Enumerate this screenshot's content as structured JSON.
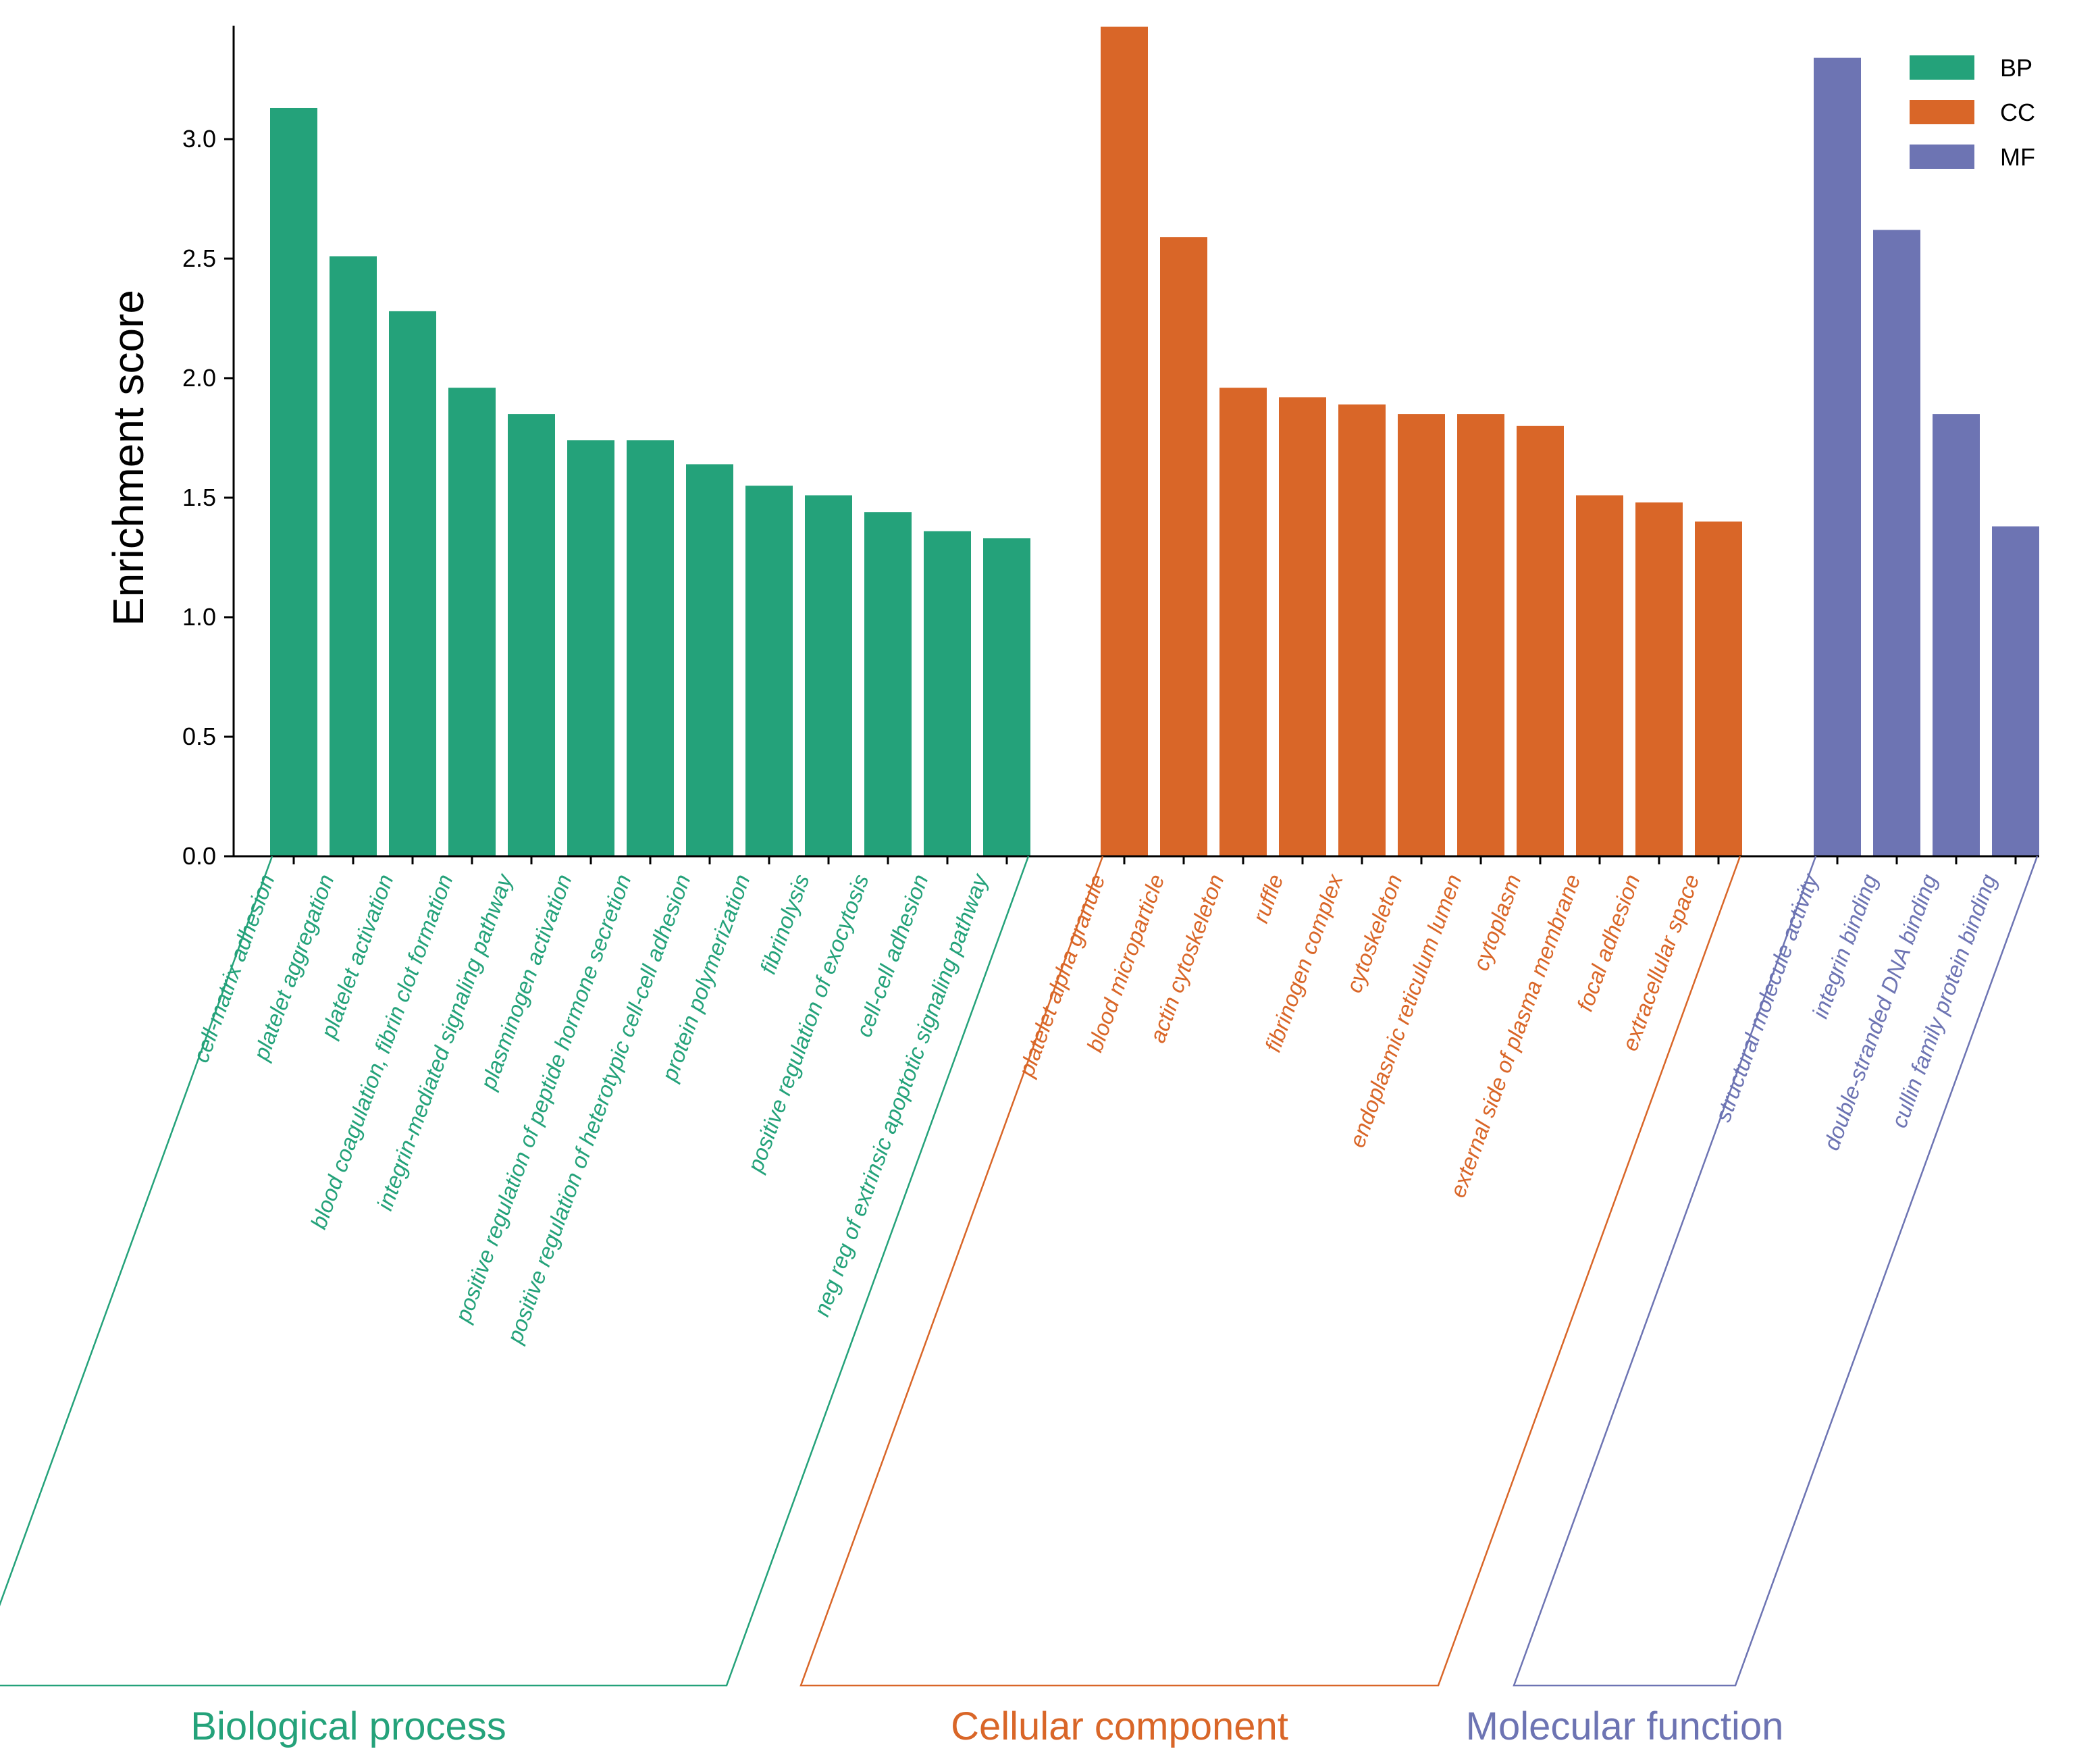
{
  "chart_data": {
    "type": "bar",
    "ylabel": "Enrichment score",
    "xlabel": "",
    "ylim": [
      0,
      3.5
    ],
    "yticks": [
      0.0,
      0.5,
      1.0,
      1.5,
      2.0,
      2.5,
      3.0
    ],
    "legend_position": "top-right",
    "groups": [
      {
        "key": "BP",
        "name": "Biological process",
        "color": "#24a27a",
        "categories": [
          "cell-matrix adhesion",
          "platelet aggregation",
          "platelet activation",
          "blood coagulation, fibrin clot formation",
          "integrin-mediated signaling pathway",
          "plasminogen activation",
          "positive regulation of peptide hormone secretion",
          "positive regulation of heterotypic cell-cell adhesion",
          "protein polymerization",
          "fibrinolysis",
          "positive regulation of exocytosis",
          "cell-cell adhesion",
          "neg reg of extrinsic apoptotic signaling pathway"
        ],
        "values": [
          3.13,
          2.51,
          2.28,
          1.96,
          1.85,
          1.74,
          1.74,
          1.64,
          1.55,
          1.51,
          1.44,
          1.36,
          1.33
        ]
      },
      {
        "key": "CC",
        "name": "Cellular component",
        "color": "#d96628",
        "categories": [
          "platelet alpha granule",
          "blood microparticle",
          "actin cytoskeleton",
          "ruffle",
          "fibrinogen complex",
          "cytoskeleton",
          "endoplasmic reticulum lumen",
          "cytoplasm",
          "external side of plasma membrane",
          "focal adhesion",
          "extracellular space"
        ],
        "values": [
          3.47,
          2.59,
          1.96,
          1.92,
          1.89,
          1.85,
          1.85,
          1.8,
          1.51,
          1.48,
          1.4
        ]
      },
      {
        "key": "MF",
        "name": "Molecular function",
        "color": "#6d74b3",
        "categories": [
          "structural molecule activity",
          "integrin binding",
          "double-stranded DNA binding",
          "cullin family protein binding"
        ],
        "values": [
          3.34,
          2.62,
          1.85,
          1.38
        ]
      }
    ]
  }
}
